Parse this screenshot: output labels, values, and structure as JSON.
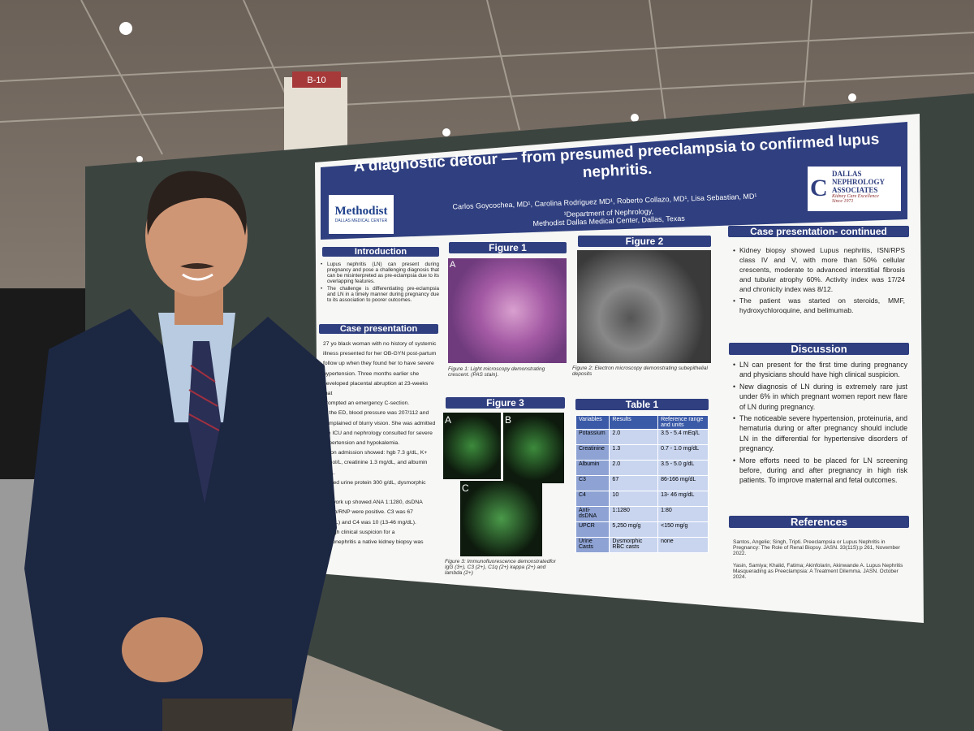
{
  "signage": "B-10",
  "poster": {
    "title": "A diagnostic detour — from presumed preeclampsia to confirmed lupus nephritis.",
    "authors": "Carlos Goycochea, MD¹, Carolina Rodriguez MD¹, Roberto Collazo, MD¹, Lisa Sebastian, MD¹",
    "affiliation": [
      "¹Department of Nephrology,",
      "Methodist Dallas Medical Center, Dallas, Texas"
    ],
    "left_logo": {
      "name": "Methodist",
      "sub": "DALLAS MEDICAL CENTER"
    },
    "right_logo": {
      "name": [
        "DALLAS",
        "NEPHROLOGY",
        "ASSOCIATES"
      ],
      "tagline": "Kidney Care Excellence",
      "since": "Since 1971"
    },
    "introduction": {
      "heading": "Introduction",
      "bullets": [
        "Lupus nephritis (LN) can present during pregnancy and pose a challenging diagnosis that can be misinterpreted as pre-eclampsia due to its overlapping features.",
        "The challenge is differentiating pre-eclampsia and LN in a timely manner during pregnancy due to its association to poorer outcomes."
      ]
    },
    "case_presentation": {
      "heading": "Case presentation",
      "lines": [
        "27 yo black woman with no history of systemic",
        "illness presented for her OB-GYN post-partum",
        "follow up when they found her to have severe",
        "hypertension. Three months earlier she",
        "developed placental abruption at 23-weeks that",
        "prompted an emergency C-section.",
        "In the ED, blood pressure was 207/112 and",
        "complained of blurry vision. She was admitted",
        "the ICU and nephrology consulted for severe",
        "hypertension and hypokalemia.",
        "ps on admission showed: hgb 7.3 g/dL, K+",
        "mmol/L, creatinine 1.3 mg/dL, and albumin",
        "g/dL.",
        "howed urine protein 300 g/dL, dysmorphic",
        "/hpf",
        "gic work up showed ANA 1:1280, dsDNA",
        "Smith/RNP were positive. C3 was 67",
        "mg/dL) and C4 was 10 (13-46 mg/dL).",
        "to high clinical suspicion for a",
        "erulonephritis a native kidney biopsy was",
        "e."
      ]
    },
    "figure1": {
      "heading": "Figure 1",
      "panel": "A",
      "caption": "Figure 1: Light microscopy demonstrating crescent. (PAS stain)."
    },
    "figure2": {
      "heading": "Figure 2",
      "caption": "Figure 2: Electron microscopy demonstrating subepithelial deposits"
    },
    "figure3": {
      "heading": "Figure 3",
      "panels": [
        "A",
        "B",
        "C"
      ],
      "caption": "Figure 3: Immunofluorescence demonstratedfor IgG (3+), C3 (2+), C1q (2+) kappa (2+) and lambda (2+)"
    },
    "table1": {
      "heading": "Table 1",
      "header": [
        "Variables",
        "Results",
        "Reference range and units"
      ],
      "rows": [
        [
          "Potassium",
          "2.0",
          "3.5 - 5.4 mEq/L"
        ],
        [
          "Creatinine",
          "1.3",
          "0.7 - 1.0 mg/dL"
        ],
        [
          "Albumin",
          "2.0",
          "3.5 - 5.0 g/dL"
        ],
        [
          "C3",
          "67",
          "86-166 mg/dL"
        ],
        [
          "C4",
          "10",
          "13- 46 mg/dL"
        ],
        [
          "Anti-dsDNA",
          "1:1280",
          "1:80"
        ],
        [
          "UPCR",
          "5,250 mg/g",
          "<150 mg/g"
        ],
        [
          "Urine Casts",
          "Dysmorphic RBC casts",
          "none"
        ]
      ]
    },
    "case_continued": {
      "heading": "Case presentation- continued",
      "bullets": [
        "Kidney biopsy showed Lupus nephritis, ISN/RPS class IV and V, with more than 50% cellular crescents, moderate to advanced interstitial fibrosis and tubular atrophy 60%. Activity index was 17/24 and chronicity index was 8/12.",
        "The patient was started on steroids, MMF, hydroxychloroquine, and belimumab."
      ]
    },
    "discussion": {
      "heading": "Discussion",
      "bullets": [
        "LN can present for the first time during pregnancy and physicians should have high clinical suspicion.",
        "New diagnosis of LN during is extremely rare just under 6% in which pregnant women report new flare of LN during pregnancy.",
        "The noticeable severe hypertension, proteinuria, and hematuria during or after pregnancy should include LN in the differential for hypertensive disorders of pregnancy.",
        "More efforts need to be placed for LN screening before, during and after pregnancy in high risk patients. To improve maternal and fetal outcomes."
      ]
    },
    "references": {
      "heading": "References",
      "items": [
        "Santos, Angelie; Singh, Tripti. Preeclampsia or Lupus Nephritis in Pregnancy: The Role of Renal Biopsy. JASN. 33(11S):p 261, November 2022.",
        "Yasin, Samiya; Khalid, Fatima; Akinfolarin, Akinwande A. Lupus Nephritis Masquerading as Preeclampsia: A Treatment Dilemma. JASN. October 2024."
      ]
    }
  }
}
